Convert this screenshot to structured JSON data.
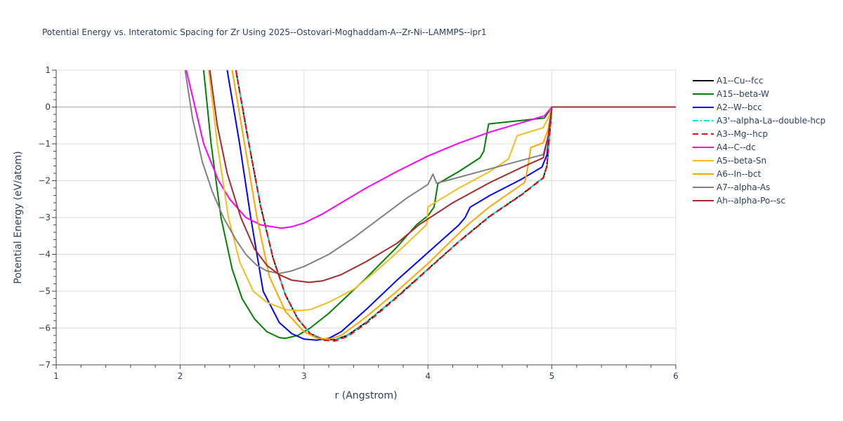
{
  "chart_data": {
    "type": "line",
    "title": "Potential Energy vs. Interatomic Spacing for Zr Using 2025--Ostovari-Moghaddam-A--Zr-Ni--LAMMPS--ipr1",
    "xlabel": "r (Angstrom)",
    "ylabel": "Potential Energy (eV/atom)",
    "xlim": [
      1,
      6
    ],
    "ylim": [
      -7,
      1
    ],
    "xticks": [
      "1",
      "2",
      "3",
      "4",
      "5",
      "6"
    ],
    "yticks": [
      "1",
      "0",
      "−1",
      "−2",
      "−3",
      "−4",
      "−5",
      "−6",
      "−7"
    ],
    "grid": true,
    "legend_position": "right",
    "series": [
      {
        "name": "A1--Cu--fcc",
        "color": "#000000",
        "dash": "solid",
        "points": [
          [
            2.45,
            1
          ],
          [
            2.55,
            -0.9
          ],
          [
            2.65,
            -2.7
          ],
          [
            2.75,
            -4.1
          ],
          [
            2.85,
            -5.1
          ],
          [
            2.95,
            -5.75
          ],
          [
            3.05,
            -6.15
          ],
          [
            3.15,
            -6.3
          ],
          [
            3.25,
            -6.32
          ],
          [
            3.35,
            -6.2
          ],
          [
            3.5,
            -5.85
          ],
          [
            3.75,
            -5.15
          ],
          [
            4.0,
            -4.4
          ],
          [
            4.25,
            -3.65
          ],
          [
            4.5,
            -2.96
          ],
          [
            4.75,
            -2.39
          ],
          [
            4.93,
            -1.92
          ],
          [
            4.96,
            -1.6
          ],
          [
            4.98,
            -0.8
          ],
          [
            5.0,
            0
          ],
          [
            6,
            0
          ]
        ]
      },
      {
        "name": "A15--beta-W",
        "color": "#008000",
        "dash": "solid",
        "points": [
          [
            2.19,
            1
          ],
          [
            2.25,
            -1
          ],
          [
            2.33,
            -3
          ],
          [
            2.42,
            -4.4
          ],
          [
            2.5,
            -5.2
          ],
          [
            2.6,
            -5.75
          ],
          [
            2.7,
            -6.1
          ],
          [
            2.8,
            -6.26
          ],
          [
            2.85,
            -6.28
          ],
          [
            2.95,
            -6.2
          ],
          [
            3.05,
            -6.0
          ],
          [
            3.2,
            -5.6
          ],
          [
            3.5,
            -4.65
          ],
          [
            3.75,
            -3.8
          ],
          [
            3.91,
            -3.19
          ],
          [
            4.0,
            -2.95
          ],
          [
            4.05,
            -2.71
          ],
          [
            4.08,
            -2.08
          ],
          [
            4.25,
            -1.75
          ],
          [
            4.42,
            -1.38
          ],
          [
            4.45,
            -1.2
          ],
          [
            4.49,
            -0.46
          ],
          [
            4.94,
            -0.3
          ],
          [
            5,
            0
          ],
          [
            6,
            0
          ]
        ]
      },
      {
        "name": "A2--W--bcc",
        "color": "#0000ff",
        "dash": "solid",
        "points": [
          [
            2.38,
            1
          ],
          [
            2.48,
            -1
          ],
          [
            2.57,
            -3
          ],
          [
            2.67,
            -5
          ],
          [
            2.8,
            -5.85
          ],
          [
            2.9,
            -6.15
          ],
          [
            3.0,
            -6.3
          ],
          [
            3.1,
            -6.33
          ],
          [
            3.2,
            -6.28
          ],
          [
            3.3,
            -6.1
          ],
          [
            3.5,
            -5.5
          ],
          [
            3.75,
            -4.7
          ],
          [
            4.0,
            -3.95
          ],
          [
            4.25,
            -3.2
          ],
          [
            4.3,
            -3.0
          ],
          [
            4.34,
            -2.72
          ],
          [
            4.5,
            -2.4
          ],
          [
            4.75,
            -1.97
          ],
          [
            4.92,
            -1.63
          ],
          [
            4.96,
            -1.3
          ],
          [
            4.98,
            -0.7
          ],
          [
            5,
            0
          ],
          [
            6,
            0
          ]
        ]
      },
      {
        "name": "A3'--alpha-La--double-hcp",
        "color": "#00e5e5",
        "dash": "dashdot",
        "points": [
          [
            2.45,
            1
          ],
          [
            2.55,
            -0.9
          ],
          [
            2.65,
            -2.7
          ],
          [
            2.75,
            -4.1
          ],
          [
            2.85,
            -5.1
          ],
          [
            2.95,
            -5.75
          ],
          [
            3.05,
            -6.15
          ],
          [
            3.15,
            -6.31
          ],
          [
            3.25,
            -6.33
          ],
          [
            3.35,
            -6.21
          ],
          [
            3.5,
            -5.86
          ],
          [
            3.75,
            -5.15
          ],
          [
            4.0,
            -4.4
          ],
          [
            4.25,
            -3.65
          ],
          [
            4.5,
            -2.96
          ],
          [
            4.75,
            -2.39
          ],
          [
            4.93,
            -1.92
          ],
          [
            4.96,
            -1.6
          ],
          [
            4.98,
            -0.8
          ],
          [
            5.0,
            0
          ],
          [
            6,
            0
          ]
        ]
      },
      {
        "name": "A3--Mg--hcp",
        "color": "#ff0000",
        "dash": "dash",
        "points": [
          [
            2.45,
            1
          ],
          [
            2.55,
            -0.9
          ],
          [
            2.65,
            -2.7
          ],
          [
            2.75,
            -4.1
          ],
          [
            2.85,
            -5.1
          ],
          [
            2.95,
            -5.75
          ],
          [
            3.05,
            -6.16
          ],
          [
            3.15,
            -6.33
          ],
          [
            3.25,
            -6.35
          ],
          [
            3.35,
            -6.23
          ],
          [
            3.5,
            -5.88
          ],
          [
            3.75,
            -5.17
          ],
          [
            4.0,
            -4.41
          ],
          [
            4.25,
            -3.66
          ],
          [
            4.5,
            -2.97
          ],
          [
            4.75,
            -2.4
          ],
          [
            4.93,
            -1.93
          ],
          [
            4.96,
            -1.6
          ],
          [
            4.98,
            -0.8
          ],
          [
            5.0,
            0
          ],
          [
            6,
            0
          ]
        ]
      },
      {
        "name": "A4--C--dc",
        "color": "#ff00ff",
        "dash": "solid",
        "points": [
          [
            2.05,
            1
          ],
          [
            2.12,
            0
          ],
          [
            2.19,
            -1
          ],
          [
            2.31,
            -2
          ],
          [
            2.4,
            -2.5
          ],
          [
            2.53,
            -3.0
          ],
          [
            2.65,
            -3.2
          ],
          [
            2.82,
            -3.29
          ],
          [
            2.9,
            -3.25
          ],
          [
            3.0,
            -3.15
          ],
          [
            3.15,
            -2.9
          ],
          [
            3.3,
            -2.6
          ],
          [
            3.5,
            -2.2
          ],
          [
            3.75,
            -1.75
          ],
          [
            4.0,
            -1.33
          ],
          [
            4.25,
            -0.98
          ],
          [
            4.5,
            -0.68
          ],
          [
            4.75,
            -0.43
          ],
          [
            4.94,
            -0.24
          ],
          [
            4.97,
            -0.12
          ],
          [
            5,
            0
          ],
          [
            6,
            0
          ]
        ]
      },
      {
        "name": "A5--beta-Sn",
        "color": "#f0be1e",
        "dash": "solid",
        "points": [
          [
            2.23,
            1
          ],
          [
            2.3,
            -1
          ],
          [
            2.39,
            -3
          ],
          [
            2.48,
            -4.2
          ],
          [
            2.59,
            -5.0
          ],
          [
            2.7,
            -5.3
          ],
          [
            2.85,
            -5.5
          ],
          [
            2.95,
            -5.53
          ],
          [
            3.05,
            -5.5
          ],
          [
            3.2,
            -5.3
          ],
          [
            3.4,
            -4.95
          ],
          [
            3.6,
            -4.4
          ],
          [
            3.8,
            -3.8
          ],
          [
            3.99,
            -3.19
          ],
          [
            4.0,
            -2.71
          ],
          [
            4.25,
            -2.2
          ],
          [
            4.5,
            -1.75
          ],
          [
            4.65,
            -1.41
          ],
          [
            4.72,
            -0.78
          ],
          [
            4.93,
            -0.56
          ],
          [
            4.97,
            -0.3
          ],
          [
            5,
            0
          ],
          [
            6,
            0
          ]
        ]
      },
      {
        "name": "A6--In--bct",
        "color": "#ffa500",
        "dash": "solid",
        "points": [
          [
            2.42,
            1
          ],
          [
            2.52,
            -1
          ],
          [
            2.62,
            -3
          ],
          [
            2.72,
            -4.6
          ],
          [
            2.85,
            -5.55
          ],
          [
            3.0,
            -6.1
          ],
          [
            3.1,
            -6.27
          ],
          [
            3.2,
            -6.3
          ],
          [
            3.3,
            -6.2
          ],
          [
            3.5,
            -5.7
          ],
          [
            3.75,
            -5.0
          ],
          [
            4.0,
            -4.25
          ],
          [
            4.32,
            -3.2
          ],
          [
            4.5,
            -2.7
          ],
          [
            4.78,
            -2.05
          ],
          [
            4.8,
            -1.75
          ],
          [
            4.83,
            -1.1
          ],
          [
            4.87,
            -1.05
          ],
          [
            4.93,
            -0.97
          ],
          [
            4.97,
            -0.6
          ],
          [
            5,
            0
          ],
          [
            6,
            0
          ]
        ]
      },
      {
        "name": "A7--alpha-As",
        "color": "#808080",
        "dash": "solid",
        "points": [
          [
            2.04,
            1
          ],
          [
            2.1,
            -0.3
          ],
          [
            2.18,
            -1.5
          ],
          [
            2.26,
            -2.3
          ],
          [
            2.35,
            -3.0
          ],
          [
            2.45,
            -3.6
          ],
          [
            2.53,
            -4.0
          ],
          [
            2.62,
            -4.3
          ],
          [
            2.7,
            -4.45
          ],
          [
            2.8,
            -4.52
          ],
          [
            2.9,
            -4.45
          ],
          [
            3.0,
            -4.33
          ],
          [
            3.2,
            -4.0
          ],
          [
            3.4,
            -3.55
          ],
          [
            3.6,
            -3.05
          ],
          [
            3.83,
            -2.47
          ],
          [
            4.0,
            -2.1
          ],
          [
            4.04,
            -1.82
          ],
          [
            4.07,
            -2.07
          ],
          [
            4.5,
            -1.68
          ],
          [
            4.93,
            -1.29
          ],
          [
            4.97,
            -0.8
          ],
          [
            5,
            0
          ],
          [
            6,
            0
          ]
        ]
      },
      {
        "name": "Ah--alpha-Po--sc",
        "color": "#a52a2a",
        "dash": "solid",
        "points": [
          [
            2.24,
            1
          ],
          [
            2.3,
            -0.5
          ],
          [
            2.38,
            -1.8
          ],
          [
            2.49,
            -3.0
          ],
          [
            2.6,
            -3.85
          ],
          [
            2.7,
            -4.3
          ],
          [
            2.8,
            -4.55
          ],
          [
            2.9,
            -4.7
          ],
          [
            3.04,
            -4.76
          ],
          [
            3.15,
            -4.72
          ],
          [
            3.3,
            -4.55
          ],
          [
            3.5,
            -4.2
          ],
          [
            3.75,
            -3.7
          ],
          [
            3.93,
            -3.19
          ],
          [
            4.2,
            -2.6
          ],
          [
            4.5,
            -2.05
          ],
          [
            4.75,
            -1.65
          ],
          [
            4.93,
            -1.38
          ],
          [
            4.97,
            -0.8
          ],
          [
            5,
            0
          ],
          [
            6,
            0
          ]
        ]
      }
    ]
  }
}
